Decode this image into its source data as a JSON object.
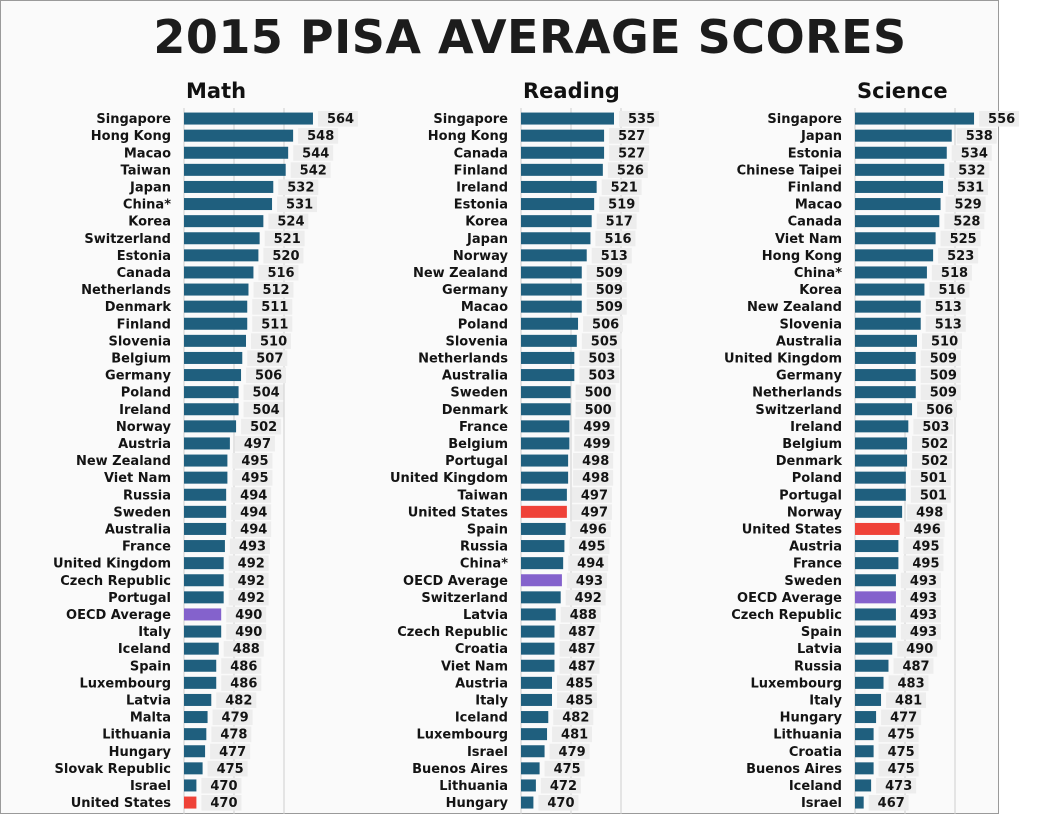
{
  "title": "2015 PISA AVERAGE SCORES",
  "colors": {
    "bar": "#1f5f7e",
    "highlight_us": "#ef4238",
    "highlight_oecd": "#8462cc",
    "label_bg": "#ededed",
    "grid": "#cfcfcf"
  },
  "chart_data": [
    {
      "type": "bar",
      "orientation": "horizontal",
      "title": "Math",
      "categories": [
        "Singapore",
        "Hong Kong",
        "Macao",
        "Taiwan",
        "Japan",
        "China*",
        "Korea",
        "Switzerland",
        "Estonia",
        "Canada",
        "Netherlands",
        "Denmark",
        "Finland",
        "Slovenia",
        "Belgium",
        "Germany",
        "Poland",
        "Ireland",
        "Norway",
        "Austria",
        "New Zealand",
        "Viet Nam",
        "Russia",
        "Sweden",
        "Australia",
        "France",
        "United Kingdom",
        "Czech Republic",
        "Portugal",
        "OECD Average",
        "Italy",
        "Iceland",
        "Spain",
        "Luxembourg",
        "Latvia",
        "Malta",
        "Lithuania",
        "Hungary",
        "Slovak Republic",
        "Israel",
        "United States"
      ],
      "values": [
        564,
        548,
        544,
        542,
        532,
        531,
        524,
        521,
        520,
        516,
        512,
        511,
        511,
        510,
        507,
        506,
        504,
        504,
        502,
        497,
        495,
        495,
        494,
        494,
        494,
        493,
        492,
        492,
        492,
        490,
        490,
        488,
        486,
        486,
        482,
        479,
        478,
        477,
        475,
        470,
        470
      ],
      "highlights": {
        "United States": "highlight_us",
        "OECD Average": "highlight_oecd"
      }
    },
    {
      "type": "bar",
      "orientation": "horizontal",
      "title": "Reading",
      "categories": [
        "Singapore",
        "Hong Kong",
        "Canada",
        "Finland",
        "Ireland",
        "Estonia",
        "Korea",
        "Japan",
        "Norway",
        "New Zealand",
        "Germany",
        "Macao",
        "Poland",
        "Slovenia",
        "Netherlands",
        "Australia",
        "Sweden",
        "Denmark",
        "France",
        "Belgium",
        "Portugal",
        "United Kingdom",
        "Taiwan",
        "United States",
        "Spain",
        "Russia",
        "China*",
        "OECD Average",
        "Switzerland",
        "Latvia",
        "Czech Republic",
        "Croatia",
        "Viet Nam",
        "Austria",
        "Italy",
        "Iceland",
        "Luxembourg",
        "Israel",
        "Buenos Aires",
        "Lithuania",
        "Hungary"
      ],
      "values": [
        535,
        527,
        527,
        526,
        521,
        519,
        517,
        516,
        513,
        509,
        509,
        509,
        506,
        505,
        503,
        503,
        500,
        500,
        499,
        499,
        498,
        498,
        497,
        497,
        496,
        495,
        494,
        493,
        492,
        488,
        487,
        487,
        487,
        485,
        485,
        482,
        481,
        479,
        475,
        472,
        470
      ],
      "highlights": {
        "United States": "highlight_us",
        "OECD Average": "highlight_oecd"
      }
    },
    {
      "type": "bar",
      "orientation": "horizontal",
      "title": "Science",
      "categories": [
        "Singapore",
        "Japan",
        "Estonia",
        "Chinese Taipei",
        "Finland",
        "Macao",
        "Canada",
        "Viet Nam",
        "Hong Kong",
        "China*",
        "Korea",
        "New Zealand",
        "Slovenia",
        "Australia",
        "United Kingdom",
        "Germany",
        "Netherlands",
        "Switzerland",
        "Ireland",
        "Belgium",
        "Denmark",
        "Poland",
        "Portugal",
        "Norway",
        "United States",
        "Austria",
        "France",
        "Sweden",
        "OECD Average",
        "Czech Republic",
        "Spain",
        "Latvia",
        "Russia",
        "Luxembourg",
        "Italy",
        "Hungary",
        "Lithuania",
        "Croatia",
        "Buenos Aires",
        "Iceland",
        "Israel"
      ],
      "values": [
        556,
        538,
        534,
        532,
        531,
        529,
        528,
        525,
        523,
        518,
        516,
        513,
        513,
        510,
        509,
        509,
        509,
        506,
        503,
        502,
        502,
        501,
        501,
        498,
        496,
        495,
        495,
        493,
        493,
        493,
        493,
        490,
        487,
        483,
        481,
        477,
        475,
        475,
        475,
        473,
        467
      ],
      "highlights": {
        "United States": "highlight_us",
        "OECD Average": "highlight_oecd"
      }
    }
  ]
}
